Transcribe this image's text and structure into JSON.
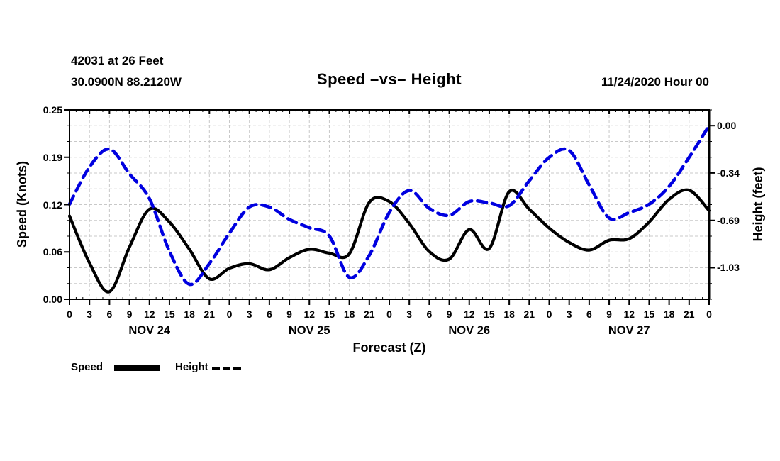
{
  "chart_data": {
    "type": "line",
    "station_line1": "42031 at 26 Feet",
    "station_line2": "30.0900N 88.2120W",
    "title": "Speed –vs– Height",
    "datetime_label": "11/24/2020 Hour 00",
    "x_label": "Forecast (Z)",
    "y1_label": "Speed (Knots)",
    "y2_label": "Height (feet)",
    "x_range": [
      0,
      96
    ],
    "x_tick_step_hours": 3,
    "x_tick_labels": [
      "0",
      "3",
      "6",
      "9",
      "12",
      "15",
      "18",
      "21",
      "0",
      "3",
      "6",
      "9",
      "12",
      "15",
      "18",
      "21",
      "0",
      "3",
      "6",
      "9",
      "12",
      "15",
      "18",
      "21",
      "0",
      "3",
      "6",
      "9",
      "12",
      "15",
      "18",
      "21",
      "0"
    ],
    "day_labels": [
      {
        "label": "NOV 24",
        "center_hour": 12
      },
      {
        "label": "NOV 25",
        "center_hour": 36
      },
      {
        "label": "NOV 26",
        "center_hour": 60
      },
      {
        "label": "NOV 27",
        "center_hour": 84
      }
    ],
    "y1_range": [
      0,
      0.25
    ],
    "y1_ticks": [
      {
        "v": 0.25,
        "label": "0.25"
      },
      {
        "v": 0.1875,
        "label": "0.19"
      },
      {
        "v": 0.125,
        "label": "0.12"
      },
      {
        "v": 0.0625,
        "label": "0.06"
      },
      {
        "v": 0.0,
        "label": "0.00"
      }
    ],
    "y2_range": [
      -1.259,
      0.114
    ],
    "y2_ticks": [
      {
        "v": 0.0,
        "label": "0.00"
      },
      {
        "v": -0.343,
        "label": "-0.34"
      },
      {
        "v": -0.687,
        "label": "-0.69"
      },
      {
        "v": -1.03,
        "label": "-1.03"
      }
    ],
    "grid": true,
    "legend_position": "bottom-left",
    "x": [
      0,
      3,
      6,
      9,
      12,
      15,
      18,
      21,
      24,
      27,
      30,
      33,
      36,
      39,
      42,
      45,
      48,
      51,
      54,
      57,
      60,
      63,
      66,
      69,
      72,
      75,
      78,
      81,
      84,
      87,
      90,
      93,
      96
    ],
    "series": [
      {
        "name": "Speed",
        "axis": "y1",
        "color": "#000000",
        "style": "solid",
        "values": [
          0.11,
          0.048,
          0.01,
          0.069,
          0.119,
          0.102,
          0.066,
          0.027,
          0.041,
          0.047,
          0.039,
          0.055,
          0.066,
          0.061,
          0.06,
          0.128,
          0.129,
          0.1,
          0.063,
          0.053,
          0.092,
          0.067,
          0.142,
          0.119,
          0.094,
          0.075,
          0.065,
          0.078,
          0.08,
          0.102,
          0.132,
          0.144,
          0.117
        ]
      },
      {
        "name": "Height",
        "axis": "y2",
        "color": "#0000e0",
        "style": "dashed",
        "values": [
          -0.57,
          -0.3,
          -0.17,
          -0.35,
          -0.53,
          -0.91,
          -1.15,
          -1.0,
          -0.78,
          -0.59,
          -0.59,
          -0.68,
          -0.74,
          -0.8,
          -1.1,
          -0.94,
          -0.63,
          -0.47,
          -0.6,
          -0.65,
          -0.55,
          -0.56,
          -0.58,
          -0.4,
          -0.23,
          -0.18,
          -0.43,
          -0.67,
          -0.63,
          -0.57,
          -0.44,
          -0.23,
          0.0
        ]
      }
    ],
    "legend": [
      {
        "label": "Speed",
        "color": "#000000",
        "style": "solid"
      },
      {
        "label": "Height",
        "color": "#0000e0",
        "style": "dashed"
      }
    ],
    "colors": {
      "grid": "#c8c8c8",
      "axis": "#000000"
    }
  }
}
